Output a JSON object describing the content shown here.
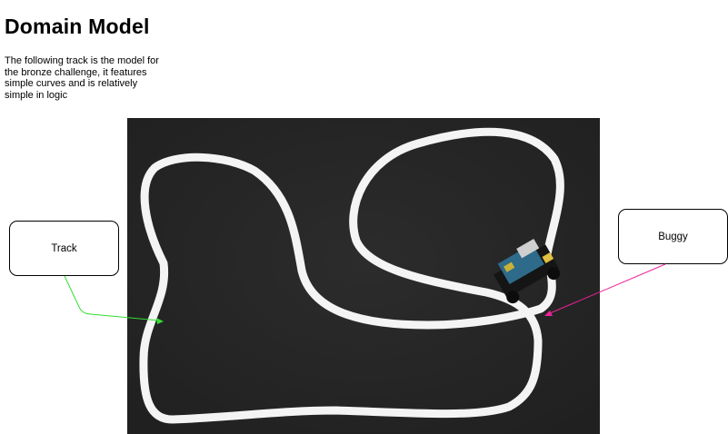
{
  "page": {
    "title": "Domain Model",
    "description": "The following track is the model for the bronze challenge, it features simple curves and is relatively simple in logic"
  },
  "callouts": {
    "track": {
      "label": "Track",
      "color": "#33dd33"
    },
    "buggy": {
      "label": "Buggy",
      "color": "#ee2299"
    }
  },
  "colors": {
    "board": "#272727",
    "track_line": "#f4f4f4",
    "buggy_pcb": "#2e6b8a"
  }
}
